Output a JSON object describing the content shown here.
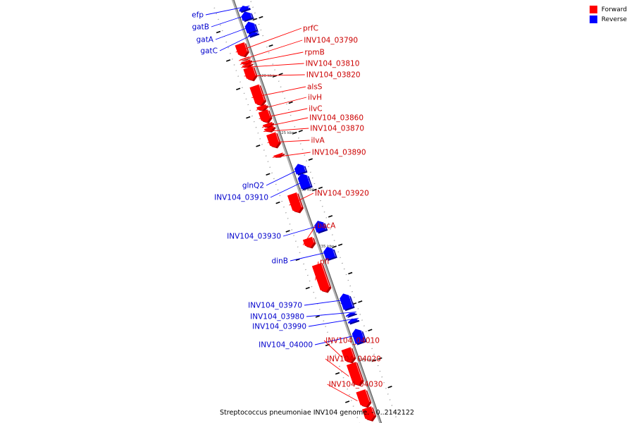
{
  "legend": {
    "items": [
      {
        "label": "Forward",
        "color": "#ff0000"
      },
      {
        "label": "Reverse",
        "color": "#0000ff"
      }
    ]
  },
  "caption": "Streptococcus pneumoniae INV104 genome. - 0..2142122",
  "colors": {
    "forward": "#ff0000",
    "forward_dark": "#b00000",
    "forward_light": "#ff9a9a",
    "reverse": "#0000ff",
    "reverse_dark": "#000099",
    "reverse_light": "#8a8aff",
    "backbone": "#b0b0b0",
    "backbone_dark": "#606060"
  },
  "scale": {
    "unit_label": "kbp",
    "major_ticks_kbp": [
      415,
      420,
      425,
      430,
      435,
      440,
      445
    ]
  },
  "genes": [
    {
      "name": "efp",
      "strand": "reverse",
      "start_kbp": 413.6,
      "end_kbp": 414.0
    },
    {
      "name": "gatB",
      "strand": "reverse",
      "start_kbp": 414.1,
      "end_kbp": 414.8
    },
    {
      "name": "gatA",
      "strand": "reverse",
      "start_kbp": 415.0,
      "end_kbp": 415.9
    },
    {
      "name": "gatC",
      "strand": "reverse",
      "start_kbp": 415.95,
      "end_kbp": 416.2
    },
    {
      "name": "prfC",
      "strand": "forward",
      "start_kbp": 416.5,
      "end_kbp": 417.6
    },
    {
      "name": "INV104_03790",
      "strand": "forward",
      "start_kbp": 417.75,
      "end_kbp": 417.85
    },
    {
      "name": "rpmB",
      "strand": "forward",
      "start_kbp": 418.0,
      "end_kbp": 418.25
    },
    {
      "name": "INV104_03810",
      "strand": "forward",
      "start_kbp": 418.3,
      "end_kbp": 418.5
    },
    {
      "name": "INV104_03820",
      "strand": "forward",
      "start_kbp": 418.6,
      "end_kbp": 419.7
    },
    {
      "name": "alsS",
      "strand": "forward",
      "start_kbp": 420.2,
      "end_kbp": 421.9
    },
    {
      "name": "ilvH",
      "strand": "forward",
      "start_kbp": 421.95,
      "end_kbp": 422.35
    },
    {
      "name": "ilvC",
      "strand": "forward",
      "start_kbp": 422.4,
      "end_kbp": 423.4
    },
    {
      "name": "INV104_03860",
      "strand": "forward",
      "start_kbp": 423.5,
      "end_kbp": 423.8
    },
    {
      "name": "INV104_03870",
      "strand": "forward",
      "start_kbp": 423.85,
      "end_kbp": 424.2
    },
    {
      "name": "ilvA",
      "strand": "forward",
      "start_kbp": 424.4,
      "end_kbp": 425.6
    },
    {
      "name": "INV104_03890",
      "strand": "forward",
      "start_kbp": 426.2,
      "end_kbp": 426.4
    },
    {
      "name": "glnQ2",
      "strand": "reverse",
      "start_kbp": 427.5,
      "end_kbp": 428.3
    },
    {
      "name": "INV104_03910",
      "strand": "reverse",
      "start_kbp": 428.35,
      "end_kbp": 429.6
    },
    {
      "name": "INV104_03920",
      "strand": "forward",
      "start_kbp": 429.7,
      "end_kbp": 431.3
    },
    {
      "name": "INV104_03930",
      "strand": "reverse",
      "start_kbp": 432.5,
      "end_kbp": 433.4
    },
    {
      "name": "bacA",
      "strand": "forward",
      "start_kbp": 433.6,
      "end_kbp": 434.4
    },
    {
      "name": "dinB",
      "strand": "reverse",
      "start_kbp": 434.8,
      "end_kbp": 435.8
    },
    {
      "name": "pfl",
      "strand": "forward",
      "start_kbp": 435.9,
      "end_kbp": 438.3
    },
    {
      "name": "INV104_03970",
      "strand": "reverse",
      "start_kbp": 438.9,
      "end_kbp": 440.2
    },
    {
      "name": "INV104_03980",
      "strand": "reverse",
      "start_kbp": 440.6,
      "end_kbp": 440.8
    },
    {
      "name": "INV104_03990",
      "strand": "reverse",
      "start_kbp": 441.1,
      "end_kbp": 441.4
    },
    {
      "name": "INV104_04000",
      "strand": "reverse",
      "start_kbp": 442.0,
      "end_kbp": 443.2
    },
    {
      "name": "INV104_04010",
      "strand": "forward",
      "start_kbp": 443.3,
      "end_kbp": 444.5
    },
    {
      "name": "INV104_04020",
      "strand": "forward",
      "start_kbp": 444.6,
      "end_kbp": 446.5
    },
    {
      "name": "INV104_04030",
      "strand": "forward",
      "start_kbp": 447.0,
      "end_kbp": 448.4
    },
    {
      "name": "",
      "strand": "forward",
      "start_kbp": 448.5,
      "end_kbp": 449.6
    }
  ]
}
